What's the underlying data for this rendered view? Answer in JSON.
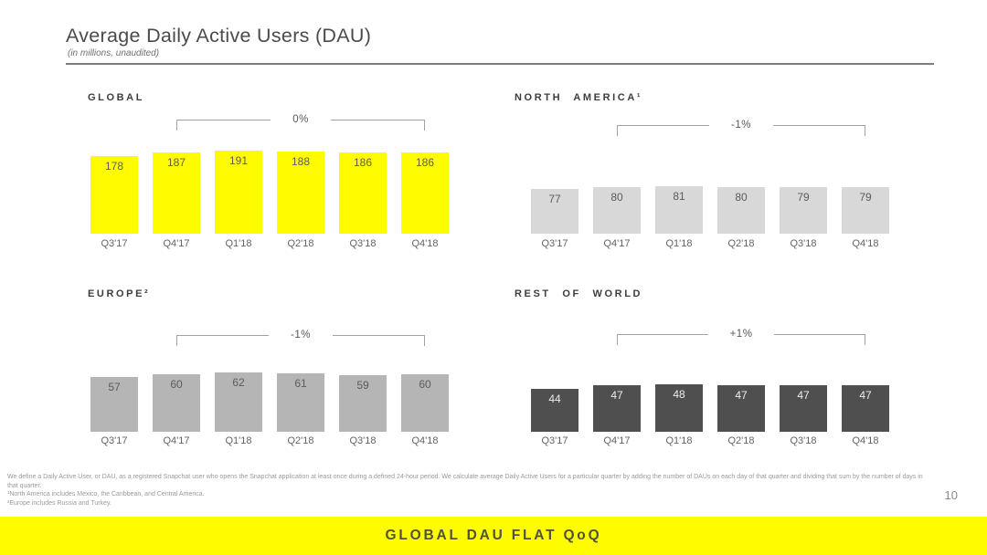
{
  "slide": {
    "title": "Average Daily Active Users (DAU)",
    "subtitle": "(in millions, unaudited)",
    "page_number": "10",
    "banner": "GLOBAL DAU FLAT QoQ"
  },
  "footnotes": {
    "definition": "We define a Daily Active User, or DAU, as a registered Snapchat user who opens the Snapchat application at least once during a defined 24-hour period. We calculate average Daily Active Users for a particular quarter by adding the number of DAUs on each day of that quarter and dividing that sum by the number of days in that quarter.",
    "note_north_america": "¹North America includes Mexico, the Caribbean, and Central America.",
    "note_europe": "²Europe includes Russia and Turkey."
  },
  "colors": {
    "snapchat_yellow": "#FFFC00",
    "light_gray_bar": "#D8D8D8",
    "medium_gray_bar": "#B5B5B5",
    "dark_gray_bar": "#4F4F4F"
  },
  "chart_data": [
    {
      "type": "bar",
      "title": "GLOBAL",
      "categories": [
        "Q3'17",
        "Q4'17",
        "Q1'18",
        "Q2'18",
        "Q3'18",
        "Q4'18"
      ],
      "values": [
        178,
        187,
        191,
        188,
        186,
        186
      ],
      "bar_color": "#FFFC00",
      "value_label_color": "#5c5c5c",
      "change": {
        "label": "0%",
        "from": "Q4'17",
        "to": "Q4'18"
      }
    },
    {
      "type": "bar",
      "title": "NORTH AMERICA¹",
      "categories": [
        "Q3'17",
        "Q4'17",
        "Q1'18",
        "Q2'18",
        "Q3'18",
        "Q4'18"
      ],
      "values": [
        77,
        80,
        81,
        80,
        79,
        79
      ],
      "bar_color": "#D8D8D8",
      "value_label_color": "#5c5c5c",
      "change": {
        "label": "-1%",
        "from": "Q4'17",
        "to": "Q4'18"
      }
    },
    {
      "type": "bar",
      "title": "EUROPE²",
      "categories": [
        "Q3'17",
        "Q4'17",
        "Q1'18",
        "Q2'18",
        "Q3'18",
        "Q4'18"
      ],
      "values": [
        57,
        60,
        62,
        61,
        59,
        60
      ],
      "bar_color": "#B5B5B5",
      "value_label_color": "#5c5c5c",
      "change": {
        "label": "-1%",
        "from": "Q4'17",
        "to": "Q4'18"
      }
    },
    {
      "type": "bar",
      "title": "REST OF WORLD",
      "categories": [
        "Q3'17",
        "Q4'17",
        "Q1'18",
        "Q2'18",
        "Q3'18",
        "Q4'18"
      ],
      "values": [
        44,
        47,
        48,
        47,
        47,
        47
      ],
      "bar_color": "#4F4F4F",
      "value_label_color": "#EDEDED",
      "change": {
        "label": "+1%",
        "from": "Q4'17",
        "to": "Q4'18"
      }
    }
  ]
}
